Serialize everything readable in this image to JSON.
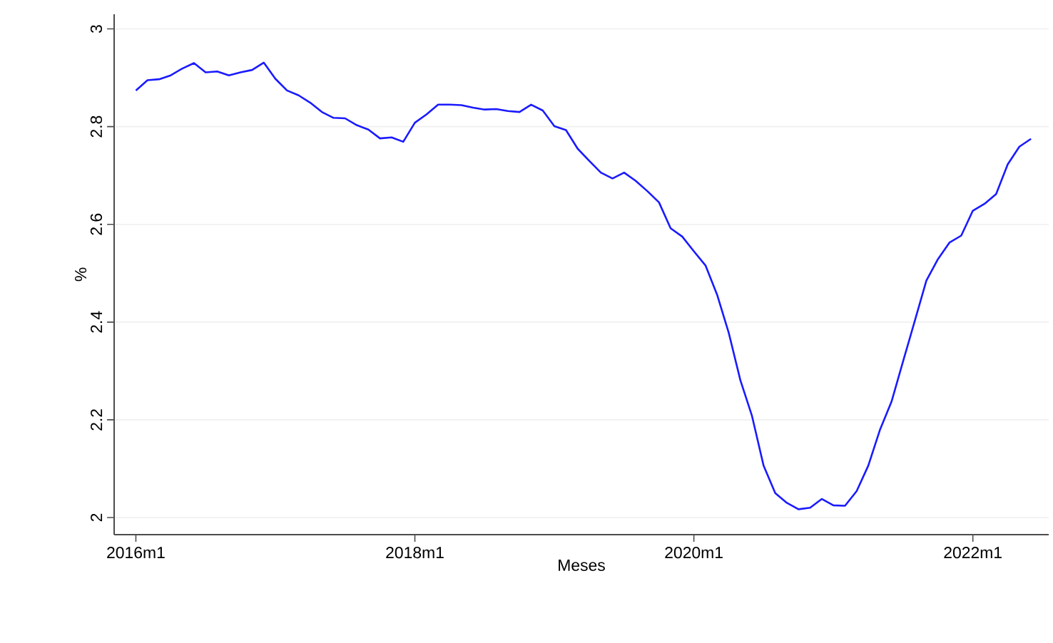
{
  "chart_data": {
    "type": "line",
    "xlabel": "Meses",
    "ylabel": "%",
    "x": [
      "2016-01",
      "2016-02",
      "2016-03",
      "2016-04",
      "2016-05",
      "2016-06",
      "2016-07",
      "2016-08",
      "2016-09",
      "2016-10",
      "2016-11",
      "2016-12",
      "2017-01",
      "2017-02",
      "2017-03",
      "2017-04",
      "2017-05",
      "2017-06",
      "2017-07",
      "2017-08",
      "2017-09",
      "2017-10",
      "2017-11",
      "2017-12",
      "2018-01",
      "2018-02",
      "2018-03",
      "2018-04",
      "2018-05",
      "2018-06",
      "2018-07",
      "2018-08",
      "2018-09",
      "2018-10",
      "2018-11",
      "2018-12",
      "2019-01",
      "2019-02",
      "2019-03",
      "2019-04",
      "2019-05",
      "2019-06",
      "2019-07",
      "2019-08",
      "2019-09",
      "2019-10",
      "2019-11",
      "2019-12",
      "2020-01",
      "2020-02",
      "2020-03",
      "2020-04",
      "2020-05",
      "2020-06",
      "2020-07",
      "2020-08",
      "2020-09",
      "2020-10",
      "2020-11",
      "2020-12",
      "2021-01",
      "2021-02",
      "2021-03",
      "2021-04",
      "2021-05",
      "2021-06",
      "2021-07",
      "2021-08",
      "2021-09",
      "2021-10",
      "2021-11",
      "2021-12",
      "2022-01",
      "2022-02",
      "2022-03",
      "2022-04",
      "2022-05",
      "2022-06"
    ],
    "series": [
      {
        "color": "#1a1aff",
        "values": [
          2.874,
          2.895,
          2.897,
          2.905,
          2.919,
          2.93,
          2.911,
          2.913,
          2.905,
          2.911,
          2.916,
          2.931,
          2.898,
          2.874,
          2.864,
          2.849,
          2.83,
          2.818,
          2.817,
          2.803,
          2.794,
          2.776,
          2.778,
          2.769,
          2.808,
          2.825,
          2.845,
          2.845,
          2.844,
          2.839,
          2.835,
          2.836,
          2.832,
          2.83,
          2.845,
          2.833,
          2.801,
          2.793,
          2.755,
          2.73,
          2.706,
          2.694,
          2.706,
          2.689,
          2.668,
          2.645,
          2.592,
          2.575,
          2.545,
          2.516,
          2.456,
          2.378,
          2.281,
          2.208,
          2.106,
          2.05,
          2.03,
          2.017,
          2.02,
          2.038,
          2.025,
          2.024,
          2.054,
          2.106,
          2.179,
          2.237,
          2.32,
          2.402,
          2.485,
          2.529,
          2.563,
          2.577,
          2.628,
          2.642,
          2.662,
          2.723,
          2.759,
          2.775
        ]
      }
    ],
    "xlim": [
      "2015-11-05",
      "2022-07-17"
    ],
    "xticks": [
      {
        "value": "2016-01",
        "label": "2016m1"
      },
      {
        "value": "2018-01",
        "label": "2018m1"
      },
      {
        "value": "2020-01",
        "label": "2020m1"
      },
      {
        "value": "2022-01",
        "label": "2022m1"
      }
    ],
    "ylim": [
      1.965,
      3.03
    ],
    "yticks": [
      2,
      2.2,
      2.4,
      2.6,
      2.8,
      3
    ],
    "grid": "y"
  }
}
